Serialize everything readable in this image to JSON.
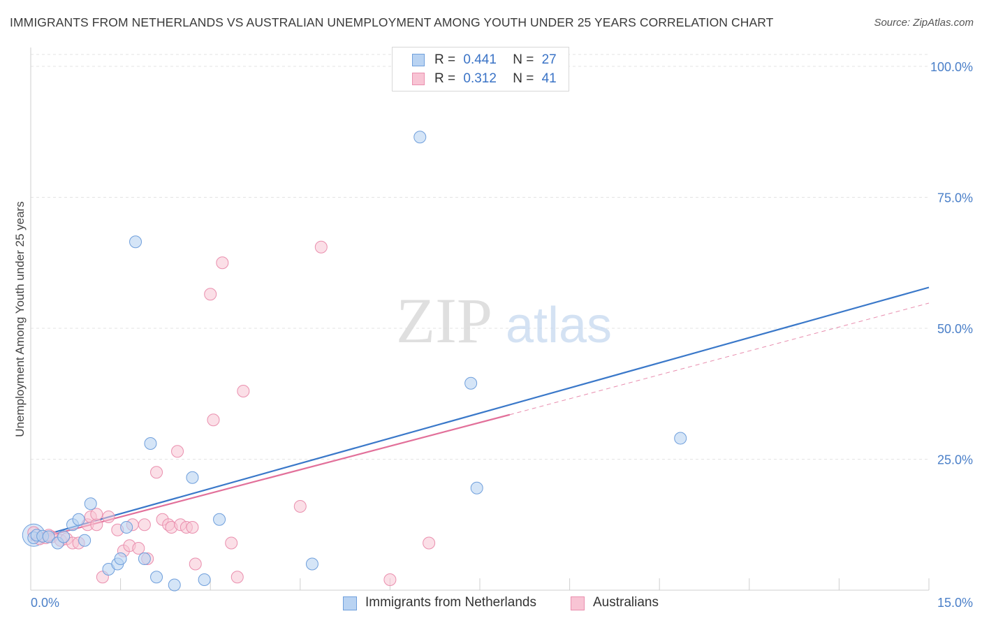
{
  "title": "IMMIGRANTS FROM NETHERLANDS VS AUSTRALIAN UNEMPLOYMENT AMONG YOUTH UNDER 25 YEARS CORRELATION CHART",
  "source": "Source: ZipAtlas.com",
  "watermark": {
    "zip": "ZIP",
    "atlas": "atlas"
  },
  "legend": {
    "rows": [
      {
        "r_label": "R =",
        "r_value": "0.441",
        "n_label": "N =",
        "n_value": "27"
      },
      {
        "r_label": "R =",
        "r_value": "0.312",
        "n_label": "N =",
        "n_value": "41"
      }
    ]
  },
  "colors": {
    "blue_fill": "#b9d3f2",
    "blue_stroke": "#6f9fdc",
    "blue_line": "#3a78c9",
    "pink_fill": "#f8c4d4",
    "pink_stroke": "#ea8fae",
    "pink_line": "#e2709a",
    "grid": "#e3e3e3",
    "axis_text": "#4a7fc8"
  },
  "chart_data": {
    "type": "scatter",
    "title": "IMMIGRANTS FROM NETHERLANDS VS AUSTRALIAN UNEMPLOYMENT AMONG YOUTH UNDER 25 YEARS CORRELATION CHART",
    "xlabel": "",
    "ylabel": "Unemployment Among Youth under 25 years",
    "xlim": [
      0,
      15
    ],
    "ylim": [
      0,
      100
    ],
    "x_tick_labels": [
      "0.0%",
      "15.0%"
    ],
    "y_ticks": [
      25,
      50,
      75,
      100
    ],
    "y_tick_labels": [
      "25.0%",
      "50.0%",
      "75.0%",
      "100.0%"
    ],
    "series": [
      {
        "name": "Immigrants from Netherlands",
        "points": [
          [
            0.05,
            10.0
          ],
          [
            0.1,
            10.5
          ],
          [
            0.2,
            10.3
          ],
          [
            0.3,
            10.2
          ],
          [
            0.45,
            9.0
          ],
          [
            0.55,
            10.2
          ],
          [
            0.7,
            12.5
          ],
          [
            0.8,
            13.5
          ],
          [
            0.9,
            9.5
          ],
          [
            1.0,
            16.5
          ],
          [
            1.3,
            4.0
          ],
          [
            1.45,
            5.0
          ],
          [
            1.5,
            6.0
          ],
          [
            1.6,
            12.0
          ],
          [
            1.75,
            66.5
          ],
          [
            1.9,
            6.0
          ],
          [
            2.0,
            28.0
          ],
          [
            2.1,
            2.5
          ],
          [
            2.4,
            1.0
          ],
          [
            2.7,
            21.5
          ],
          [
            2.9,
            2.0
          ],
          [
            3.15,
            13.5
          ],
          [
            4.7,
            5.0
          ],
          [
            6.5,
            86.5
          ],
          [
            7.35,
            39.5
          ],
          [
            7.45,
            19.5
          ],
          [
            10.85,
            29.0
          ]
        ],
        "trend": {
          "x0": 0,
          "y0": 9.8,
          "x1": 15,
          "y1": 57.8
        }
      },
      {
        "name": "Australians",
        "points": [
          [
            0.05,
            11.0
          ],
          [
            0.15,
            9.8
          ],
          [
            0.25,
            10.0
          ],
          [
            0.35,
            10.2
          ],
          [
            0.5,
            9.5
          ],
          [
            0.6,
            9.8
          ],
          [
            0.7,
            9.0
          ],
          [
            0.8,
            9.0
          ],
          [
            0.95,
            12.5
          ],
          [
            1.0,
            14.0
          ],
          [
            1.1,
            12.5
          ],
          [
            1.2,
            2.5
          ],
          [
            1.3,
            14.0
          ],
          [
            1.45,
            11.5
          ],
          [
            1.55,
            7.5
          ],
          [
            1.65,
            8.5
          ],
          [
            1.7,
            12.5
          ],
          [
            1.8,
            8.0
          ],
          [
            1.9,
            12.5
          ],
          [
            1.95,
            6.0
          ],
          [
            2.1,
            22.5
          ],
          [
            2.2,
            13.5
          ],
          [
            2.3,
            12.5
          ],
          [
            2.35,
            12.0
          ],
          [
            2.45,
            26.5
          ],
          [
            2.5,
            12.5
          ],
          [
            2.6,
            12.0
          ],
          [
            2.7,
            12.0
          ],
          [
            2.75,
            5.0
          ],
          [
            3.0,
            56.5
          ],
          [
            3.05,
            32.5
          ],
          [
            3.2,
            62.5
          ],
          [
            3.35,
            9.0
          ],
          [
            3.45,
            2.5
          ],
          [
            3.55,
            38.0
          ],
          [
            4.5,
            16.0
          ],
          [
            4.85,
            65.5
          ],
          [
            6.0,
            2.0
          ],
          [
            6.65,
            9.0
          ],
          [
            1.1,
            14.5
          ],
          [
            0.3,
            10.5
          ]
        ],
        "trend": {
          "x0": 0,
          "y0": 9.5,
          "x1": 8.0,
          "y1": 33.5
        },
        "trend_dashed": {
          "x0": 8.0,
          "y0": 33.5,
          "x1": 15,
          "y1": 54.8
        }
      }
    ]
  },
  "bottom_legend": [
    {
      "label": "Immigrants from Netherlands"
    },
    {
      "label": "Australians"
    }
  ]
}
